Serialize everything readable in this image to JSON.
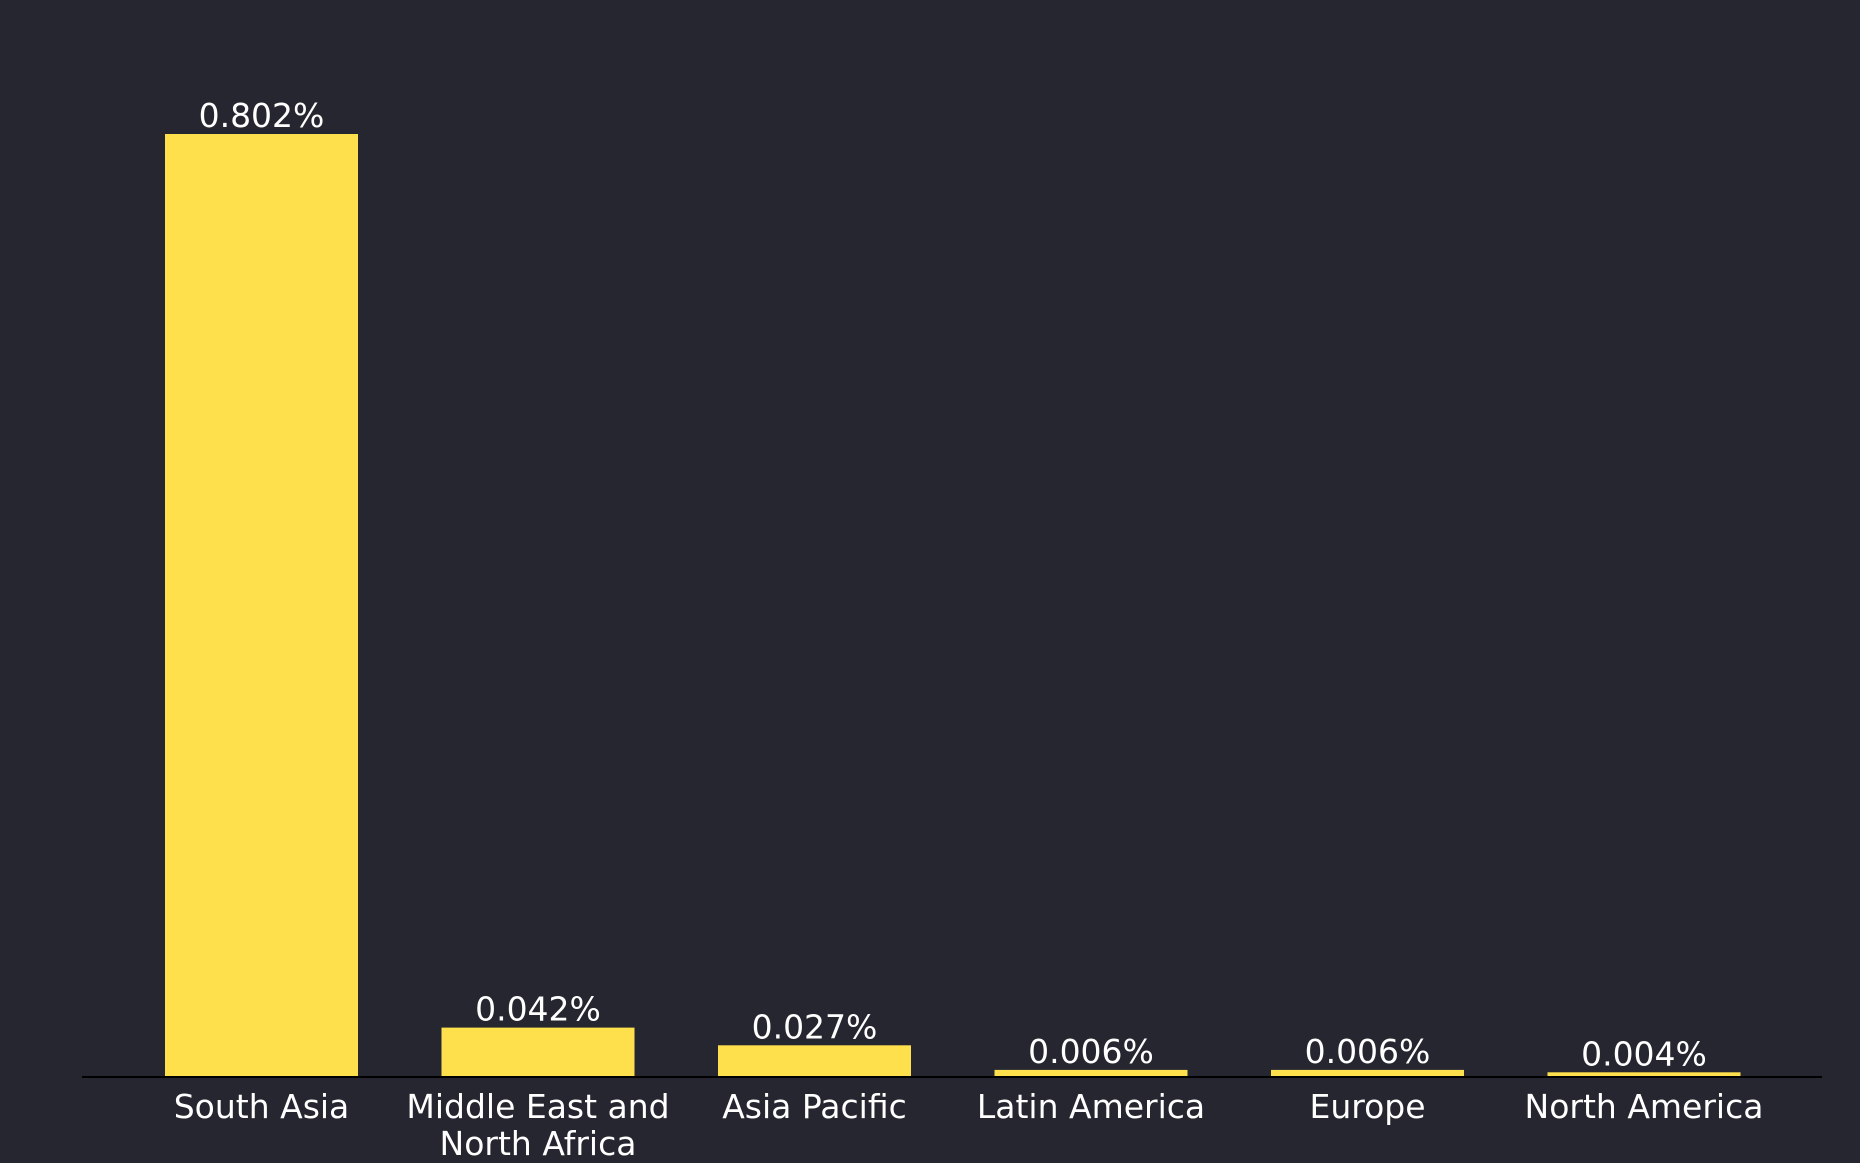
{
  "chart_data": {
    "type": "bar",
    "categories": [
      [
        "South Asia"
      ],
      [
        "Middle East and",
        "North Africa"
      ],
      [
        "Asia Pacific"
      ],
      [
        "Latin America"
      ],
      [
        "Europe"
      ],
      [
        "North America"
      ]
    ],
    "values": [
      0.802,
      0.042,
      0.027,
      0.006,
      0.006,
      0.004
    ],
    "value_labels": [
      "0.802%",
      "0.042%",
      "0.027%",
      "0.006%",
      "0.006%",
      "0.004%"
    ],
    "ylim": [
      0,
      0.802
    ],
    "grid": false,
    "legend": "none"
  },
  "colors": {
    "background": "#25262f",
    "bar": "#fee04d",
    "axis": "#000000",
    "text": "#ffffff"
  }
}
